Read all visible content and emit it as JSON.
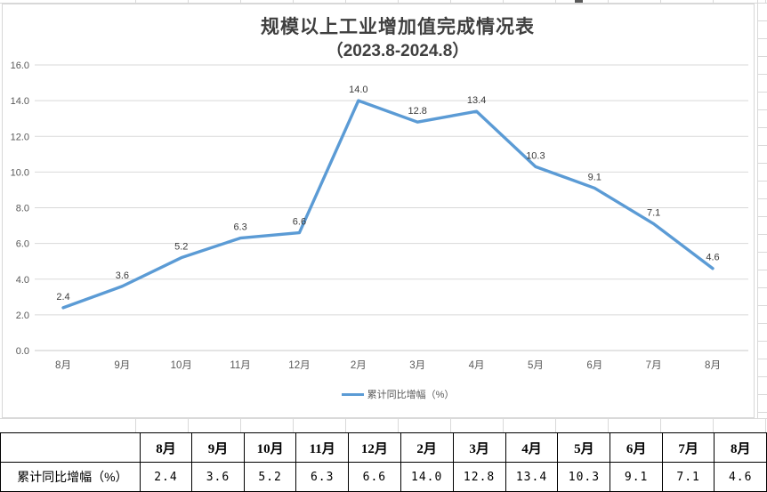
{
  "chart": {
    "title_line1": "规模以上工业增加值完成情况表",
    "title_line2": "（2023.8-2024.8）",
    "legend_label": "累计同比增幅（%）",
    "line_color": "#5B9BD5",
    "gridline_color": "#d9d9d9",
    "axis_label_color": "#595959",
    "data_label_color": "#3b3b3b"
  },
  "chart_data": {
    "type": "line",
    "title": "规模以上工业增加值完成情况表（2023.8-2024.8）",
    "categories": [
      "8月",
      "9月",
      "10月",
      "11月",
      "12月",
      "2月",
      "3月",
      "4月",
      "5月",
      "6月",
      "7月",
      "8月"
    ],
    "series": [
      {
        "name": "累计同比增幅（%）",
        "values": [
          2.4,
          3.6,
          5.2,
          6.3,
          6.6,
          14.0,
          12.8,
          13.4,
          10.3,
          9.1,
          7.1,
          4.6
        ]
      }
    ],
    "ylim": [
      0,
      16
    ],
    "ytick_step": 2,
    "ytick_labels": [
      "0.0",
      "2.0",
      "4.0",
      "6.0",
      "8.0",
      "10.0",
      "12.0",
      "14.0",
      "16.0"
    ],
    "grid": true,
    "legend_position": "bottom",
    "data_labels": true
  },
  "table": {
    "row_label": "累计同比增幅（%）",
    "columns": [
      "8月",
      "9月",
      "10月",
      "11月",
      "12月",
      "2月",
      "3月",
      "4月",
      "5月",
      "6月",
      "7月",
      "8月"
    ],
    "values": [
      "2.4",
      "3.6",
      "5.2",
      "6.3",
      "6.6",
      "14.0",
      "12.8",
      "13.4",
      "10.3",
      "9.1",
      "7.1",
      "4.6"
    ]
  }
}
